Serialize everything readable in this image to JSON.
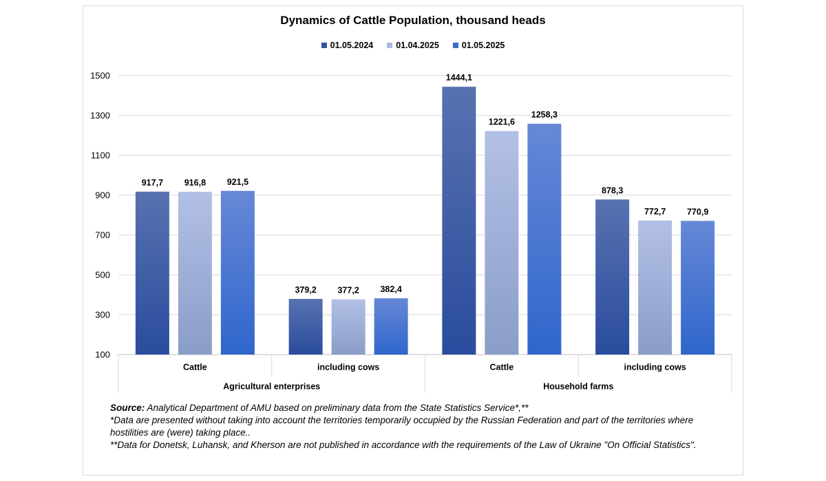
{
  "chart_data": {
    "type": "bar",
    "title": "Dynamics of Cattle Population, thousand heads",
    "groups": [
      {
        "label": "Agricultural enterprises",
        "categories": [
          "Cattle",
          "including cows"
        ]
      },
      {
        "label": "Household farms",
        "categories": [
          "Cattle",
          "including cows"
        ]
      }
    ],
    "series": [
      {
        "name": "01.05.2024",
        "color": "#2f52a0",
        "labels": [
          "917,7",
          "379,2",
          "1444,1",
          "878,3"
        ],
        "values": [
          917.7,
          379.2,
          1444.1,
          878.3
        ]
      },
      {
        "name": "01.04.2025",
        "color": "#a9b8e0",
        "labels": [
          "916,8",
          "377,2",
          "1221,6",
          "772,7"
        ],
        "values": [
          916.8,
          377.2,
          1221.6,
          772.7
        ]
      },
      {
        "name": "01.05.2025",
        "color": "#3a6cd0",
        "labels": [
          "921,5",
          "382,4",
          "1258,3",
          "770,9"
        ],
        "values": [
          921.5,
          382.4,
          1258.3,
          770.9
        ]
      }
    ],
    "ylim": [
      100,
      1500
    ],
    "yticks": [
      "100",
      "300",
      "500",
      "700",
      "900",
      "1100",
      "1300",
      "1500"
    ],
    "grid": true,
    "legend": "top-center"
  },
  "notes": {
    "source_label": "Source:",
    "source_text": " Analytical Department of AMU based on preliminary data from the State Statistics Service*,**",
    "note1": "*Data are presented without taking into account the territories temporarily occupied by the Russian Federation and part of the territories where hostilities are (were) taking place..",
    "note2": "**Data for Donetsk, Luhansk, and Kherson are not published in accordance with the requirements of the Law of Ukraine \"On Official Statistics\"."
  }
}
